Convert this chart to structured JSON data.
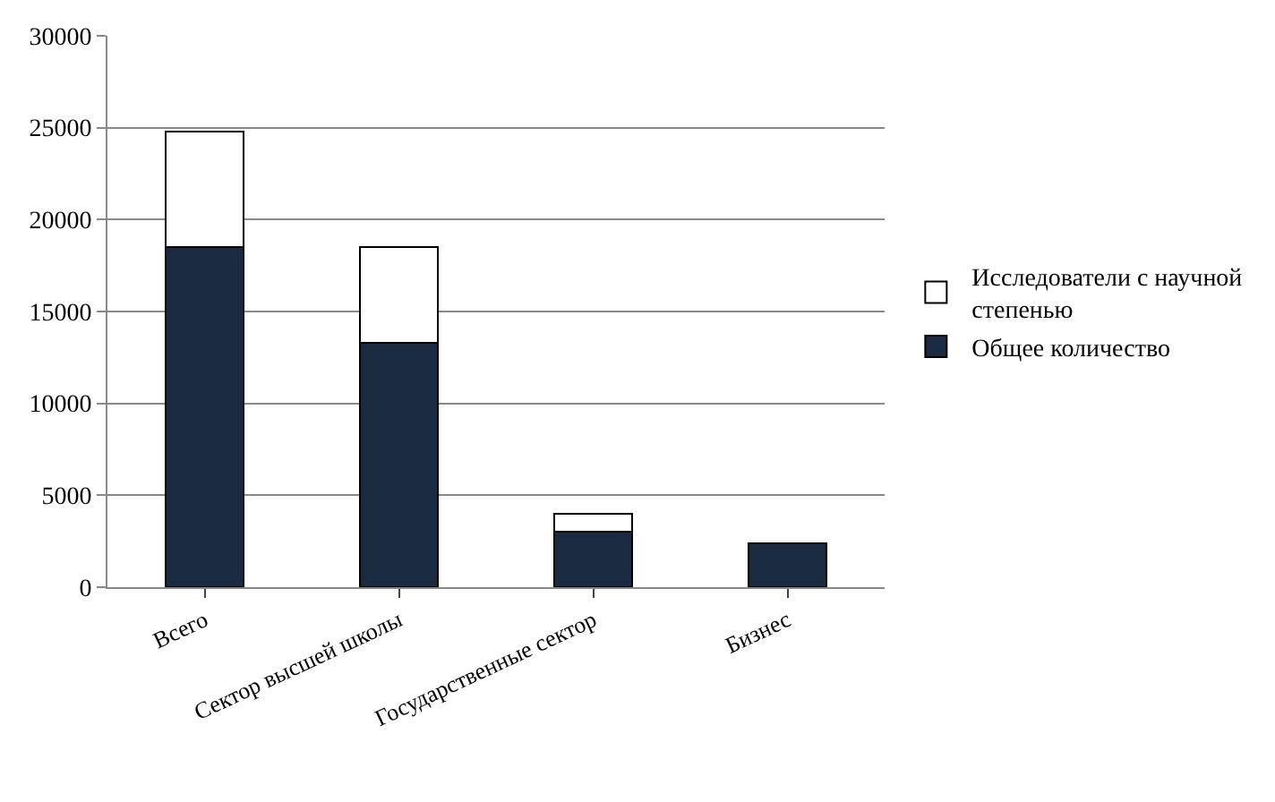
{
  "chart_data": {
    "type": "bar",
    "stacked": true,
    "categories": [
      "Всего",
      "Сектор высшей школы",
      "Государственные сектор",
      "Бизнес"
    ],
    "series": [
      {
        "name": "Общее количество",
        "color": "#1a2a40",
        "values": [
          18500,
          13300,
          3000,
          2400
        ]
      },
      {
        "name": "Исследователи с научной степенью",
        "color": "#ffffff",
        "values": [
          6300,
          5200,
          1000,
          0
        ]
      }
    ],
    "ylim": [
      0,
      30000
    ],
    "yticks": [
      0,
      5000,
      10000,
      15000,
      20000,
      25000,
      30000
    ],
    "grid": "y",
    "legend": "right"
  }
}
